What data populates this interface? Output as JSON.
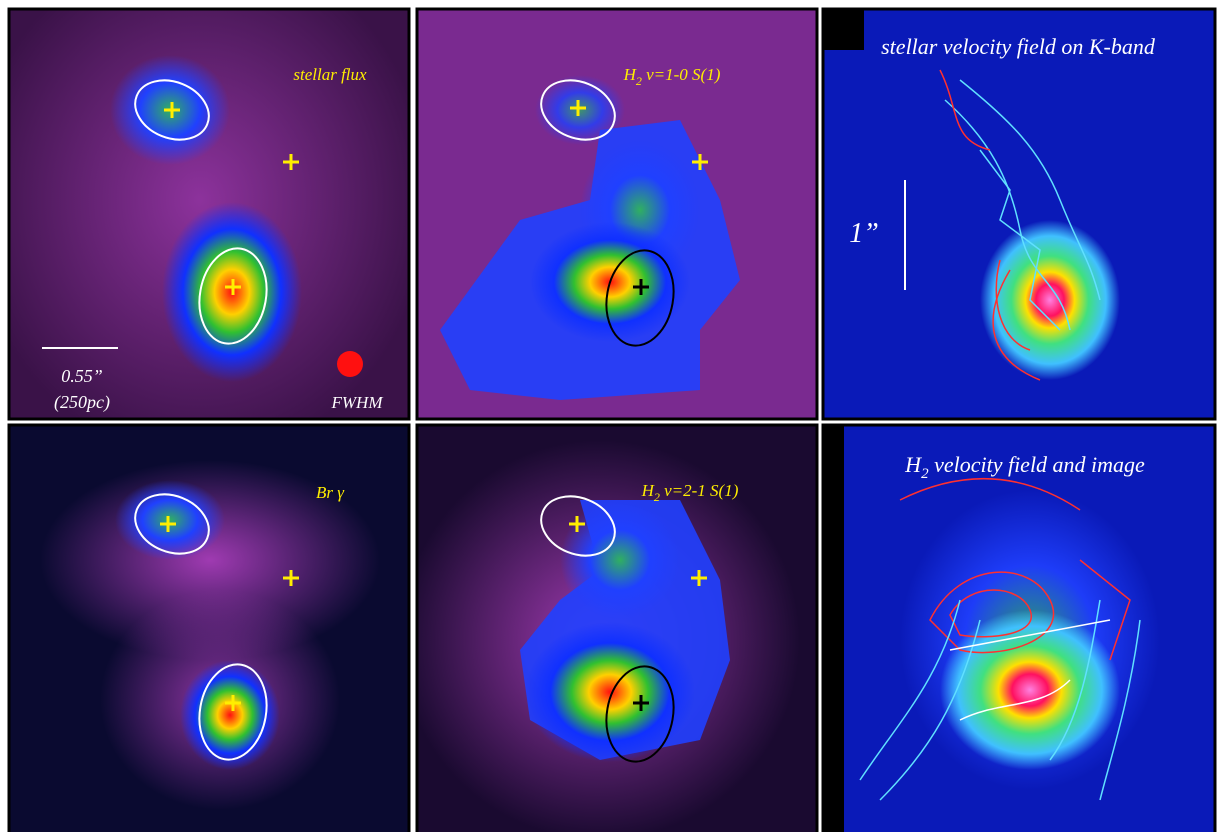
{
  "panels": [
    {
      "label": "stellar flux",
      "scale_bar": "0.55”",
      "scale_bar_sub": "(250pc)",
      "beam": "FWHM"
    },
    {
      "label_parts": [
        "H",
        "2",
        " v=1-0 S(1)"
      ]
    },
    {
      "label": "stellar velocity field on K-band",
      "scale_bar": "1”"
    },
    {
      "label": "Br γ"
    },
    {
      "label_parts": [
        "H",
        "2",
        " v=2-1 S(1)"
      ]
    },
    {
      "label_parts": [
        "H",
        "2",
        " velocity field and image"
      ]
    }
  ]
}
